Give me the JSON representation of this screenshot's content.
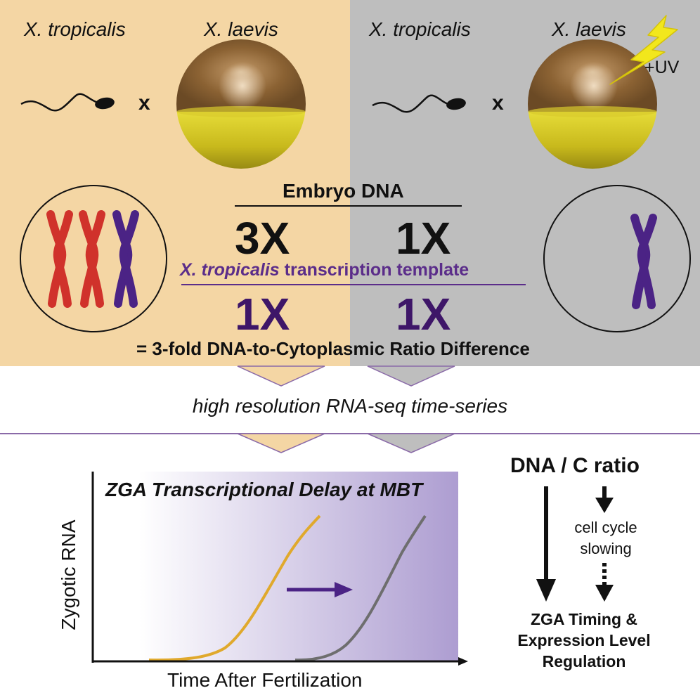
{
  "top": {
    "left_panel": {
      "sperm_species": "X. tropicalis",
      "egg_species": "X. laevis",
      "cross": "x"
    },
    "right_panel": {
      "sperm_species": "X. tropicalis",
      "egg_species": "X. laevis",
      "cross": "x",
      "treatment": "+UV"
    }
  },
  "ratio_block": {
    "embryo_dna_label": "Embryo DNA",
    "left_dna": "3X",
    "right_dna": "1X",
    "template_label_italic": "X. tropicalis",
    "template_label_rest": " transcription template",
    "left_template": "1X",
    "right_template": "1X",
    "result": "= 3-fold DNA-to-Cytoplasmic Ratio Difference"
  },
  "method": {
    "label": "high resolution RNA-seq time-series"
  },
  "plot": {
    "title": "ZGA Transcriptional Delay at MBT",
    "ylabel": "Zygotic RNA",
    "xlabel": "Time After Fertilization"
  },
  "model": {
    "top_label": "DNA / C ratio",
    "middle_line1": "cell cycle",
    "middle_line2": "slowing",
    "bottom_line1": "ZGA Timing &",
    "bottom_line2": "Expression Level",
    "bottom_line3": "Regulation"
  },
  "colors": {
    "left_bg": "#f4d6a4",
    "right_bg": "#bebebe",
    "red_chromosome": "#d0322b",
    "purple_chromosome": "#4b2385",
    "curve_early": "#e0a92c",
    "curve_late": "#6e6e6e",
    "plot_purple": "#b0a0d2",
    "divider_purple": "#8a6aa8"
  },
  "icons": [
    "sperm-icon",
    "egg-icon",
    "lightning-icon",
    "chromosome-icon",
    "arrow-icon"
  ]
}
